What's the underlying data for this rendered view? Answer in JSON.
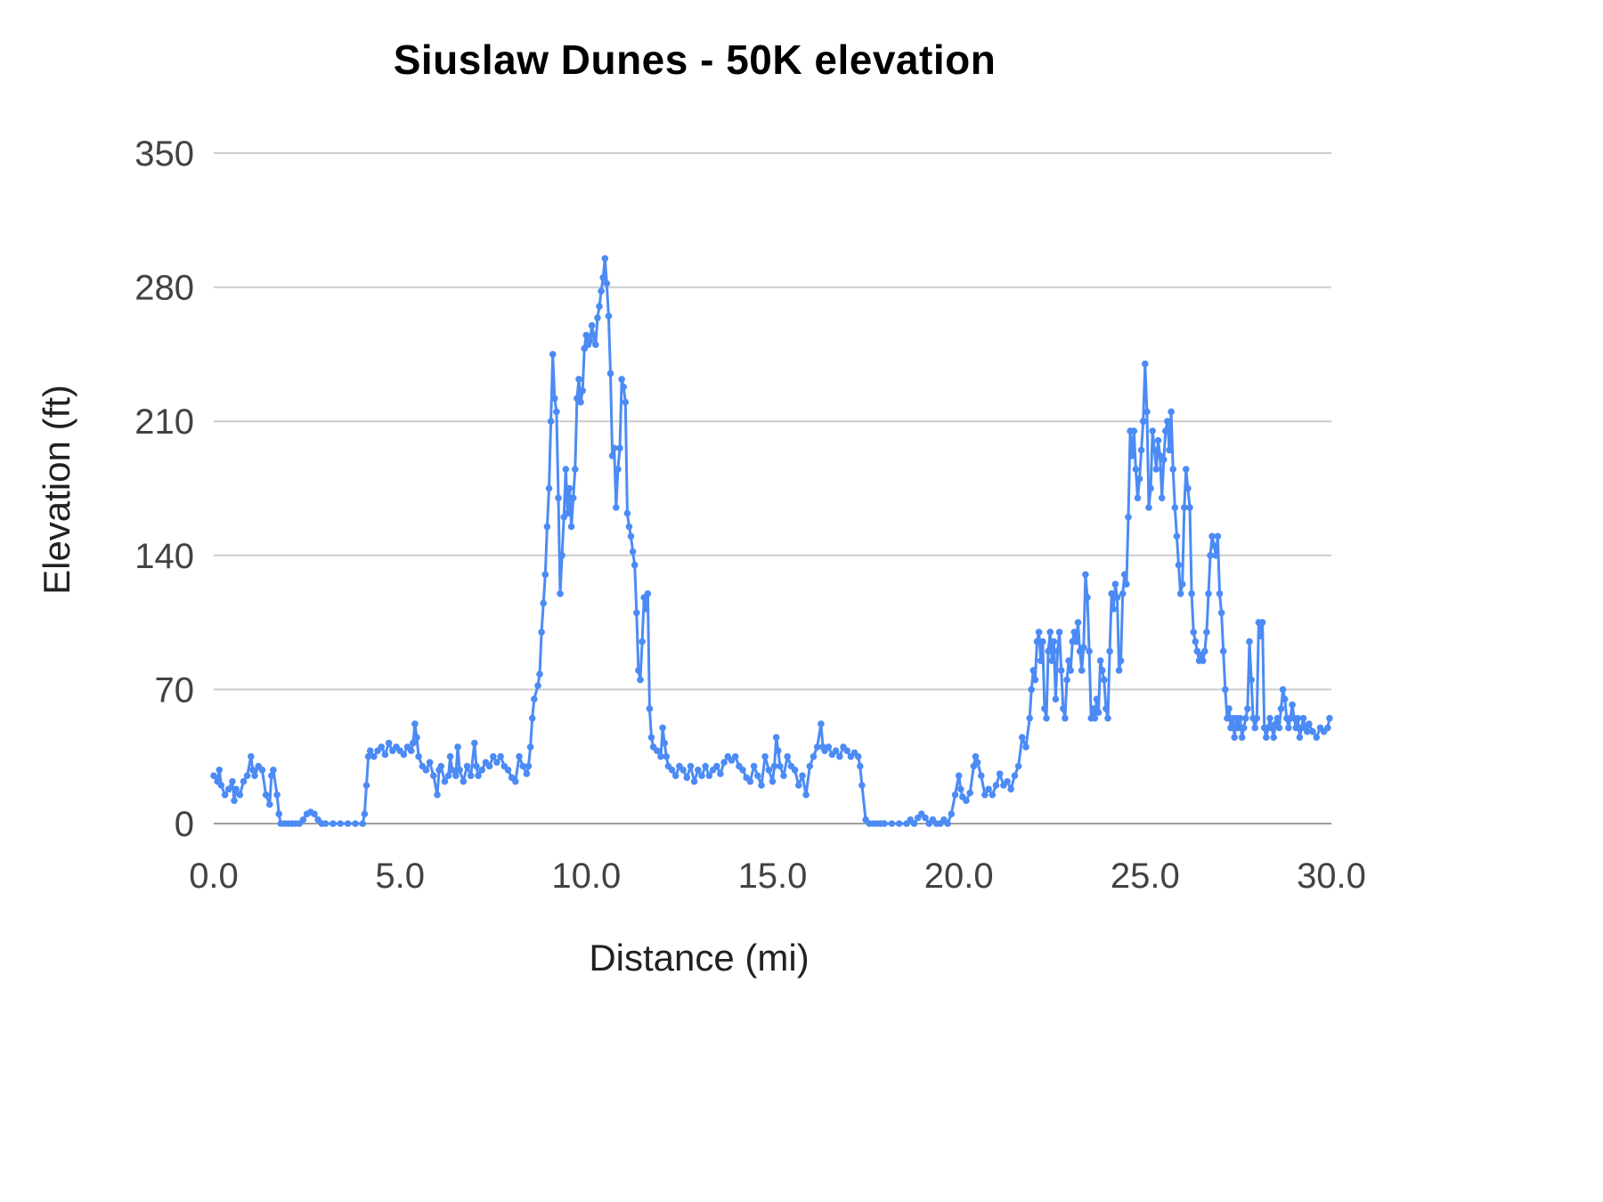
{
  "chart_data": {
    "type": "line",
    "title": "Siuslaw Dunes - 50K elevation",
    "xlabel": "Distance (mi)",
    "ylabel": "Elevation (ft)",
    "xlim": [
      0,
      30
    ],
    "ylim": [
      0,
      350
    ],
    "xticks": [
      0,
      5,
      10,
      15,
      20,
      25,
      30
    ],
    "xtick_labels": [
      "0.0",
      "5.0",
      "10.0",
      "15.0",
      "20.0",
      "25.0",
      "30.0"
    ],
    "yticks": [
      0,
      70,
      140,
      210,
      280,
      350
    ],
    "ytick_labels": [
      "0",
      "70",
      "140",
      "210",
      "280",
      "350"
    ],
    "grid": true,
    "legend": "none",
    "line_color": "#4c8bf5",
    "grid_color": "#cccccc",
    "baseline_color": "#9e9e9e",
    "series_name": "Elevation (ft)",
    "points": [
      [
        0.0,
        25
      ],
      [
        0.1,
        22
      ],
      [
        0.15,
        28
      ],
      [
        0.2,
        20
      ],
      [
        0.3,
        15
      ],
      [
        0.4,
        18
      ],
      [
        0.5,
        22
      ],
      [
        0.55,
        12
      ],
      [
        0.6,
        18
      ],
      [
        0.7,
        15
      ],
      [
        0.8,
        22
      ],
      [
        0.9,
        25
      ],
      [
        1.0,
        35
      ],
      [
        1.05,
        28
      ],
      [
        1.1,
        25
      ],
      [
        1.2,
        30
      ],
      [
        1.3,
        28
      ],
      [
        1.4,
        15
      ],
      [
        1.5,
        10
      ],
      [
        1.55,
        25
      ],
      [
        1.6,
        28
      ],
      [
        1.7,
        15
      ],
      [
        1.75,
        5
      ],
      [
        1.8,
        0
      ],
      [
        1.9,
        0
      ],
      [
        2.0,
        0
      ],
      [
        2.1,
        0
      ],
      [
        2.2,
        0
      ],
      [
        2.3,
        0
      ],
      [
        2.4,
        2
      ],
      [
        2.5,
        5
      ],
      [
        2.6,
        6
      ],
      [
        2.7,
        5
      ],
      [
        2.8,
        2
      ],
      [
        2.9,
        0
      ],
      [
        3.0,
        0
      ],
      [
        3.2,
        0
      ],
      [
        3.4,
        0
      ],
      [
        3.6,
        0
      ],
      [
        3.8,
        0
      ],
      [
        4.0,
        0
      ],
      [
        4.05,
        5
      ],
      [
        4.1,
        20
      ],
      [
        4.15,
        35
      ],
      [
        4.2,
        38
      ],
      [
        4.3,
        35
      ],
      [
        4.4,
        38
      ],
      [
        4.5,
        40
      ],
      [
        4.6,
        36
      ],
      [
        4.7,
        42
      ],
      [
        4.8,
        38
      ],
      [
        4.9,
        40
      ],
      [
        5.0,
        38
      ],
      [
        5.1,
        36
      ],
      [
        5.2,
        40
      ],
      [
        5.3,
        38
      ],
      [
        5.35,
        42
      ],
      [
        5.4,
        52
      ],
      [
        5.45,
        45
      ],
      [
        5.5,
        35
      ],
      [
        5.6,
        30
      ],
      [
        5.7,
        28
      ],
      [
        5.8,
        32
      ],
      [
        5.9,
        25
      ],
      [
        6.0,
        15
      ],
      [
        6.05,
        28
      ],
      [
        6.1,
        30
      ],
      [
        6.2,
        22
      ],
      [
        6.3,
        25
      ],
      [
        6.35,
        35
      ],
      [
        6.4,
        28
      ],
      [
        6.5,
        25
      ],
      [
        6.55,
        40
      ],
      [
        6.6,
        28
      ],
      [
        6.7,
        22
      ],
      [
        6.8,
        30
      ],
      [
        6.9,
        25
      ],
      [
        7.0,
        42
      ],
      [
        7.05,
        30
      ],
      [
        7.1,
        25
      ],
      [
        7.2,
        28
      ],
      [
        7.3,
        32
      ],
      [
        7.4,
        30
      ],
      [
        7.5,
        35
      ],
      [
        7.6,
        32
      ],
      [
        7.7,
        35
      ],
      [
        7.8,
        30
      ],
      [
        7.9,
        28
      ],
      [
        8.0,
        24
      ],
      [
        8.1,
        22
      ],
      [
        8.2,
        35
      ],
      [
        8.3,
        30
      ],
      [
        8.4,
        26
      ],
      [
        8.45,
        30
      ],
      [
        8.5,
        40
      ],
      [
        8.55,
        55
      ],
      [
        8.6,
        65
      ],
      [
        8.7,
        72
      ],
      [
        8.75,
        78
      ],
      [
        8.8,
        100
      ],
      [
        8.85,
        115
      ],
      [
        8.9,
        130
      ],
      [
        8.95,
        155
      ],
      [
        9.0,
        175
      ],
      [
        9.05,
        210
      ],
      [
        9.1,
        245
      ],
      [
        9.15,
        222
      ],
      [
        9.2,
        215
      ],
      [
        9.25,
        170
      ],
      [
        9.3,
        120
      ],
      [
        9.35,
        140
      ],
      [
        9.4,
        160
      ],
      [
        9.45,
        185
      ],
      [
        9.5,
        162
      ],
      [
        9.55,
        175
      ],
      [
        9.6,
        155
      ],
      [
        9.65,
        170
      ],
      [
        9.7,
        185
      ],
      [
        9.75,
        222
      ],
      [
        9.8,
        232
      ],
      [
        9.85,
        220
      ],
      [
        9.9,
        226
      ],
      [
        9.95,
        248
      ],
      [
        10.0,
        255
      ],
      [
        10.05,
        250
      ],
      [
        10.1,
        252
      ],
      [
        10.15,
        260
      ],
      [
        10.2,
        255
      ],
      [
        10.25,
        250
      ],
      [
        10.3,
        264
      ],
      [
        10.35,
        270
      ],
      [
        10.4,
        278
      ],
      [
        10.45,
        285
      ],
      [
        10.5,
        295
      ],
      [
        10.55,
        282
      ],
      [
        10.6,
        265
      ],
      [
        10.65,
        235
      ],
      [
        10.7,
        192
      ],
      [
        10.75,
        196
      ],
      [
        10.8,
        165
      ],
      [
        10.85,
        185
      ],
      [
        10.9,
        196
      ],
      [
        10.95,
        232
      ],
      [
        11.0,
        228
      ],
      [
        11.05,
        220
      ],
      [
        11.1,
        162
      ],
      [
        11.15,
        155
      ],
      [
        11.2,
        150
      ],
      [
        11.25,
        142
      ],
      [
        11.3,
        135
      ],
      [
        11.35,
        110
      ],
      [
        11.4,
        80
      ],
      [
        11.45,
        75
      ],
      [
        11.5,
        95
      ],
      [
        11.55,
        118
      ],
      [
        11.6,
        112
      ],
      [
        11.65,
        120
      ],
      [
        11.7,
        60
      ],
      [
        11.75,
        45
      ],
      [
        11.8,
        40
      ],
      [
        11.9,
        38
      ],
      [
        12.0,
        35
      ],
      [
        12.05,
        50
      ],
      [
        12.1,
        42
      ],
      [
        12.15,
        35
      ],
      [
        12.2,
        30
      ],
      [
        12.3,
        28
      ],
      [
        12.4,
        25
      ],
      [
        12.5,
        30
      ],
      [
        12.6,
        28
      ],
      [
        12.7,
        24
      ],
      [
        12.8,
        30
      ],
      [
        12.9,
        22
      ],
      [
        13.0,
        28
      ],
      [
        13.1,
        25
      ],
      [
        13.2,
        30
      ],
      [
        13.3,
        25
      ],
      [
        13.4,
        28
      ],
      [
        13.5,
        30
      ],
      [
        13.6,
        26
      ],
      [
        13.7,
        32
      ],
      [
        13.8,
        35
      ],
      [
        13.9,
        33
      ],
      [
        14.0,
        35
      ],
      [
        14.1,
        30
      ],
      [
        14.2,
        28
      ],
      [
        14.3,
        24
      ],
      [
        14.4,
        22
      ],
      [
        14.5,
        30
      ],
      [
        14.6,
        25
      ],
      [
        14.7,
        20
      ],
      [
        14.8,
        35
      ],
      [
        14.9,
        28
      ],
      [
        15.0,
        22
      ],
      [
        15.05,
        30
      ],
      [
        15.1,
        45
      ],
      [
        15.15,
        38
      ],
      [
        15.2,
        30
      ],
      [
        15.3,
        25
      ],
      [
        15.4,
        35
      ],
      [
        15.5,
        30
      ],
      [
        15.6,
        28
      ],
      [
        15.7,
        20
      ],
      [
        15.8,
        25
      ],
      [
        15.9,
        15
      ],
      [
        16.0,
        30
      ],
      [
        16.1,
        35
      ],
      [
        16.2,
        40
      ],
      [
        16.3,
        52
      ],
      [
        16.35,
        40
      ],
      [
        16.4,
        38
      ],
      [
        16.5,
        40
      ],
      [
        16.6,
        36
      ],
      [
        16.7,
        38
      ],
      [
        16.8,
        35
      ],
      [
        16.9,
        40
      ],
      [
        17.0,
        38
      ],
      [
        17.1,
        35
      ],
      [
        17.2,
        37
      ],
      [
        17.3,
        35
      ],
      [
        17.35,
        30
      ],
      [
        17.4,
        20
      ],
      [
        17.5,
        2
      ],
      [
        17.6,
        0
      ],
      [
        17.7,
        0
      ],
      [
        17.8,
        0
      ],
      [
        17.9,
        0
      ],
      [
        18.0,
        0
      ],
      [
        18.2,
        0
      ],
      [
        18.4,
        0
      ],
      [
        18.6,
        0
      ],
      [
        18.7,
        2
      ],
      [
        18.8,
        0
      ],
      [
        18.9,
        3
      ],
      [
        19.0,
        5
      ],
      [
        19.1,
        3
      ],
      [
        19.2,
        0
      ],
      [
        19.3,
        2
      ],
      [
        19.4,
        0
      ],
      [
        19.5,
        0
      ],
      [
        19.6,
        2
      ],
      [
        19.7,
        0
      ],
      [
        19.8,
        5
      ],
      [
        19.9,
        15
      ],
      [
        20.0,
        25
      ],
      [
        20.05,
        18
      ],
      [
        20.1,
        14
      ],
      [
        20.2,
        12
      ],
      [
        20.3,
        16
      ],
      [
        20.4,
        30
      ],
      [
        20.45,
        35
      ],
      [
        20.5,
        32
      ],
      [
        20.6,
        25
      ],
      [
        20.7,
        15
      ],
      [
        20.8,
        18
      ],
      [
        20.9,
        15
      ],
      [
        21.0,
        20
      ],
      [
        21.1,
        26
      ],
      [
        21.2,
        20
      ],
      [
        21.3,
        22
      ],
      [
        21.4,
        18
      ],
      [
        21.5,
        25
      ],
      [
        21.6,
        30
      ],
      [
        21.7,
        45
      ],
      [
        21.8,
        40
      ],
      [
        21.9,
        55
      ],
      [
        21.95,
        70
      ],
      [
        22.0,
        80
      ],
      [
        22.05,
        75
      ],
      [
        22.1,
        95
      ],
      [
        22.15,
        100
      ],
      [
        22.2,
        85
      ],
      [
        22.25,
        95
      ],
      [
        22.3,
        60
      ],
      [
        22.35,
        55
      ],
      [
        22.4,
        90
      ],
      [
        22.45,
        100
      ],
      [
        22.5,
        85
      ],
      [
        22.55,
        95
      ],
      [
        22.6,
        65
      ],
      [
        22.65,
        90
      ],
      [
        22.7,
        100
      ],
      [
        22.75,
        80
      ],
      [
        22.8,
        60
      ],
      [
        22.85,
        55
      ],
      [
        22.9,
        75
      ],
      [
        22.95,
        85
      ],
      [
        23.0,
        80
      ],
      [
        23.05,
        95
      ],
      [
        23.1,
        100
      ],
      [
        23.15,
        95
      ],
      [
        23.2,
        105
      ],
      [
        23.25,
        90
      ],
      [
        23.3,
        80
      ],
      [
        23.35,
        92
      ],
      [
        23.4,
        130
      ],
      [
        23.45,
        118
      ],
      [
        23.5,
        90
      ],
      [
        23.55,
        55
      ],
      [
        23.6,
        60
      ],
      [
        23.65,
        55
      ],
      [
        23.7,
        65
      ],
      [
        23.75,
        58
      ],
      [
        23.8,
        85
      ],
      [
        23.85,
        80
      ],
      [
        23.9,
        75
      ],
      [
        23.95,
        60
      ],
      [
        24.0,
        55
      ],
      [
        24.05,
        90
      ],
      [
        24.1,
        120
      ],
      [
        24.15,
        112
      ],
      [
        24.2,
        125
      ],
      [
        24.25,
        118
      ],
      [
        24.3,
        80
      ],
      [
        24.35,
        85
      ],
      [
        24.4,
        120
      ],
      [
        24.45,
        130
      ],
      [
        24.5,
        125
      ],
      [
        24.55,
        160
      ],
      [
        24.6,
        205
      ],
      [
        24.65,
        192
      ],
      [
        24.7,
        205
      ],
      [
        24.75,
        185
      ],
      [
        24.8,
        170
      ],
      [
        24.85,
        180
      ],
      [
        24.9,
        195
      ],
      [
        24.95,
        210
      ],
      [
        25.0,
        240
      ],
      [
        25.05,
        215
      ],
      [
        25.1,
        165
      ],
      [
        25.15,
        175
      ],
      [
        25.2,
        205
      ],
      [
        25.25,
        195
      ],
      [
        25.3,
        185
      ],
      [
        25.35,
        200
      ],
      [
        25.4,
        192
      ],
      [
        25.45,
        170
      ],
      [
        25.5,
        190
      ],
      [
        25.55,
        205
      ],
      [
        25.6,
        210
      ],
      [
        25.65,
        195
      ],
      [
        25.7,
        215
      ],
      [
        25.75,
        185
      ],
      [
        25.8,
        165
      ],
      [
        25.85,
        150
      ],
      [
        25.9,
        135
      ],
      [
        25.95,
        120
      ],
      [
        26.0,
        125
      ],
      [
        26.05,
        165
      ],
      [
        26.1,
        185
      ],
      [
        26.15,
        175
      ],
      [
        26.2,
        165
      ],
      [
        26.25,
        120
      ],
      [
        26.3,
        100
      ],
      [
        26.35,
        95
      ],
      [
        26.4,
        90
      ],
      [
        26.45,
        85
      ],
      [
        26.5,
        88
      ],
      [
        26.55,
        85
      ],
      [
        26.6,
        90
      ],
      [
        26.65,
        100
      ],
      [
        26.7,
        120
      ],
      [
        26.75,
        140
      ],
      [
        26.8,
        150
      ],
      [
        26.85,
        145
      ],
      [
        26.9,
        140
      ],
      [
        26.95,
        150
      ],
      [
        27.0,
        120
      ],
      [
        27.05,
        110
      ],
      [
        27.1,
        90
      ],
      [
        27.15,
        70
      ],
      [
        27.2,
        55
      ],
      [
        27.25,
        60
      ],
      [
        27.3,
        50
      ],
      [
        27.35,
        55
      ],
      [
        27.4,
        45
      ],
      [
        27.45,
        55
      ],
      [
        27.5,
        50
      ],
      [
        27.55,
        55
      ],
      [
        27.6,
        45
      ],
      [
        27.65,
        50
      ],
      [
        27.7,
        55
      ],
      [
        27.75,
        60
      ],
      [
        27.8,
        95
      ],
      [
        27.85,
        75
      ],
      [
        27.9,
        55
      ],
      [
        27.95,
        50
      ],
      [
        28.0,
        55
      ],
      [
        28.05,
        105
      ],
      [
        28.1,
        98
      ],
      [
        28.15,
        105
      ],
      [
        28.2,
        50
      ],
      [
        28.25,
        45
      ],
      [
        28.3,
        50
      ],
      [
        28.35,
        55
      ],
      [
        28.4,
        50
      ],
      [
        28.45,
        45
      ],
      [
        28.5,
        52
      ],
      [
        28.55,
        55
      ],
      [
        28.6,
        50
      ],
      [
        28.65,
        60
      ],
      [
        28.7,
        70
      ],
      [
        28.75,
        65
      ],
      [
        28.8,
        55
      ],
      [
        28.85,
        50
      ],
      [
        28.9,
        55
      ],
      [
        28.95,
        62
      ],
      [
        29.0,
        55
      ],
      [
        29.05,
        50
      ],
      [
        29.1,
        55
      ],
      [
        29.15,
        45
      ],
      [
        29.2,
        50
      ],
      [
        29.25,
        55
      ],
      [
        29.3,
        50
      ],
      [
        29.35,
        48
      ],
      [
        29.4,
        52
      ],
      [
        29.5,
        48
      ],
      [
        29.6,
        45
      ],
      [
        29.7,
        50
      ],
      [
        29.8,
        48
      ],
      [
        29.9,
        50
      ],
      [
        29.95,
        55
      ]
    ]
  }
}
